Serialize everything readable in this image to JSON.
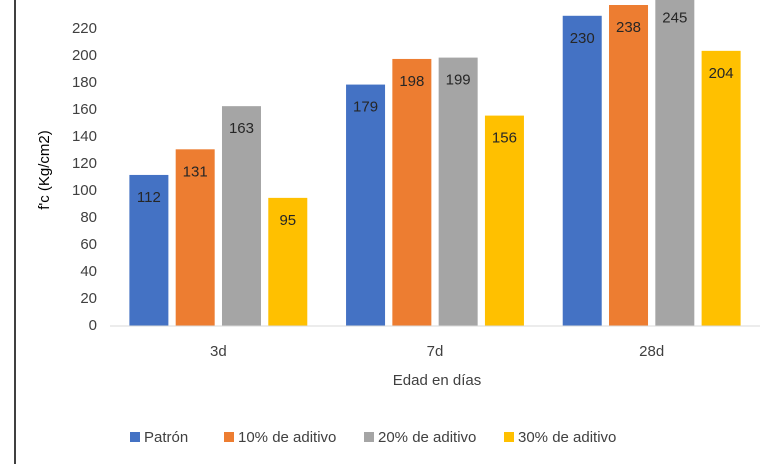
{
  "chart_data": {
    "type": "bar",
    "ylabel": "f'c (Kg/cm2)",
    "xlabel": "Edad en días",
    "categories": [
      "3d",
      "7d",
      "28d"
    ],
    "series": [
      {
        "name": "Patrón",
        "color": "#4472c4",
        "values": [
          112,
          179,
          230
        ]
      },
      {
        "name": "10% de aditivo",
        "color": "#ed7d31",
        "values": [
          131,
          198,
          238
        ]
      },
      {
        "name": "20% de aditivo",
        "color": "#a5a5a5",
        "values": [
          163,
          199,
          245
        ]
      },
      {
        "name": "30% de aditivo",
        "color": "#ffc000",
        "values": [
          95,
          156,
          204
        ]
      }
    ],
    "ylim": [
      0,
      238
    ],
    "yticks": [
      0,
      20,
      40,
      60,
      80,
      100,
      120,
      140,
      160,
      180,
      200,
      220
    ],
    "grid": false,
    "legend": "bottom"
  }
}
